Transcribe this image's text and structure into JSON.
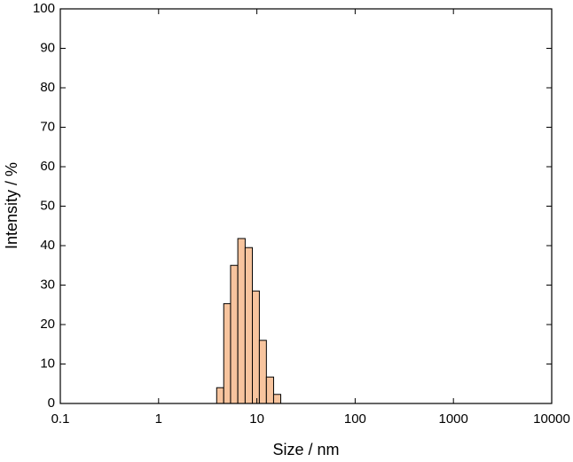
{
  "chart_data": {
    "type": "histogram",
    "x_label": "Size / nm",
    "y_label": "Intensity / %",
    "bins": [
      3.9,
      4.6,
      5.4,
      6.4,
      7.6,
      9.0,
      10.6,
      12.5,
      14.8,
      17.5
    ],
    "values": [
      4,
      25.3,
      35,
      41.8,
      39.5,
      28.5,
      16,
      6.7,
      2.3
    ],
    "color": "#f7c49e",
    "edgecolor": "#000000",
    "xscale": "log",
    "xlim": [
      0.1,
      10000
    ],
    "xticks": [
      0.1,
      1,
      10,
      100,
      1000,
      10000
    ],
    "ylim": [
      0,
      100
    ],
    "yticks": [
      0,
      10,
      20,
      30,
      40,
      50,
      60,
      70,
      80,
      90,
      100
    ]
  }
}
